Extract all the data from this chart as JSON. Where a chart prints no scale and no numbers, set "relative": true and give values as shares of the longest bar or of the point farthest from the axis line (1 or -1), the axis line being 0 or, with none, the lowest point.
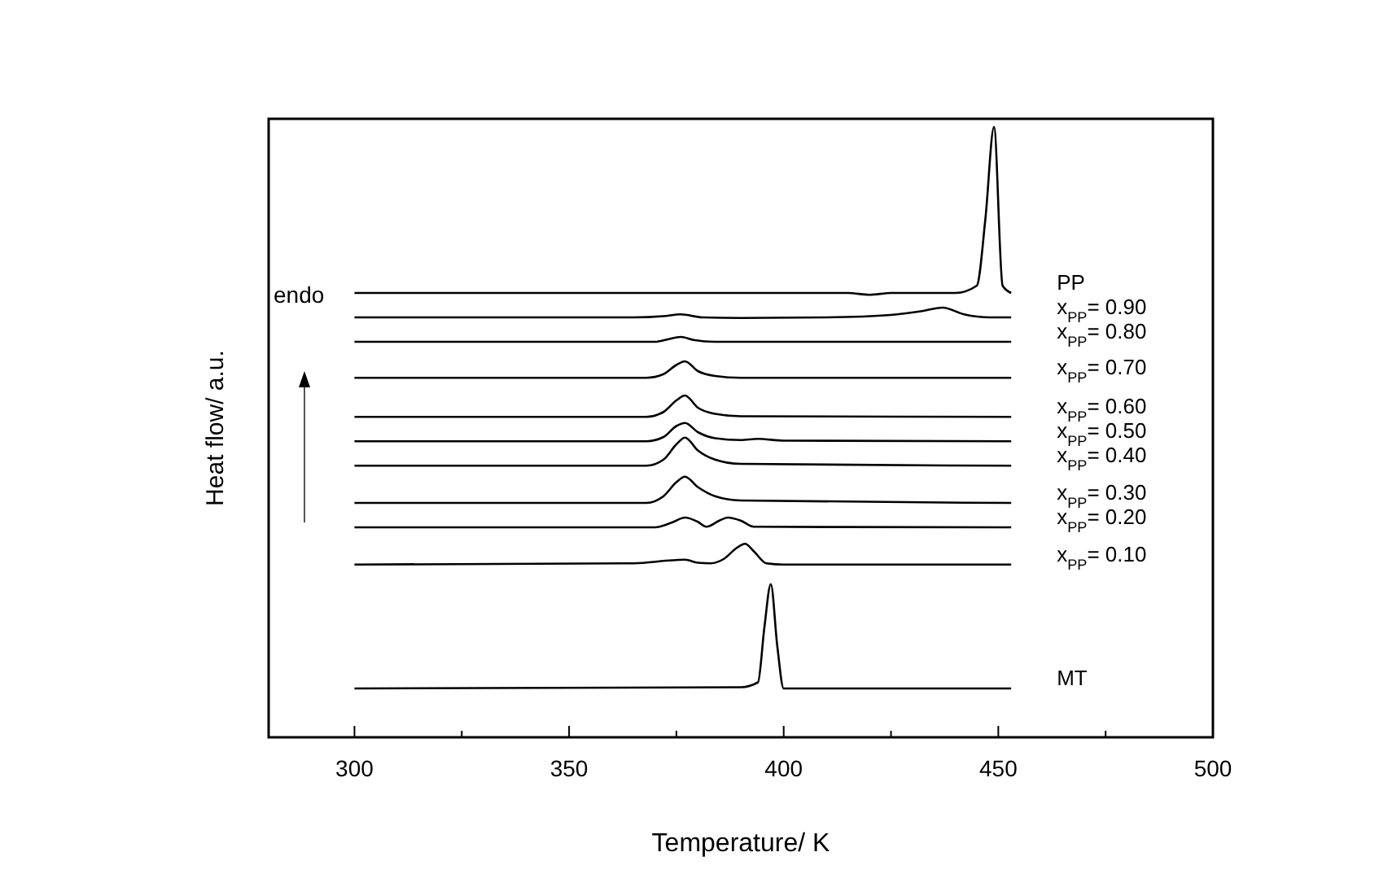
{
  "chart_data": {
    "type": "line",
    "relative": true,
    "xlabel": "Temperature/ K",
    "ylabel": "Heat flow/ a.u.",
    "annotations": [
      "endo"
    ],
    "legend": false,
    "grid": false,
    "marker": "none",
    "line_style": "solid",
    "tick_labels": "x",
    "xlim": [
      280,
      500
    ],
    "xticks": [
      300,
      {
        "value": 325,
        "label": null
      },
      350,
      {
        "value": 375,
        "label": null
      },
      400,
      {
        "value": 425,
        "label": null
      },
      450,
      {
        "value": 475,
        "label": null
      },
      500
    ],
    "series": [
      {
        "name": "PP",
        "color": "#000000",
        "x": [
          300,
          400,
          415,
          420,
          425,
          440,
          445,
          447,
          449,
          451,
          453
        ],
        "values": [
          0.728,
          0.728,
          0.728,
          0.725,
          0.728,
          0.728,
          0.74,
          0.85,
          1.0,
          0.74,
          0.728
        ]
      },
      {
        "name": "x$_{PP}$= 0.90",
        "color": "#000000",
        "x": [
          300,
          365,
          372,
          376,
          381,
          390,
          410,
          425,
          432,
          437,
          442,
          448,
          453
        ],
        "values": [
          0.688,
          0.688,
          0.69,
          0.693,
          0.688,
          0.687,
          0.688,
          0.692,
          0.698,
          0.704,
          0.693,
          0.688,
          0.688
        ]
      },
      {
        "name": "x$_{PP}$= 0.80",
        "color": "#000000",
        "x": [
          300,
          370,
          373,
          376,
          379,
          384,
          453
        ],
        "values": [
          0.648,
          0.648,
          0.652,
          0.656,
          0.651,
          0.648,
          0.648
        ]
      },
      {
        "name": "x$_{PP}$= 0.70",
        "color": "#000000",
        "x": [
          300,
          368,
          372,
          375,
          377,
          380,
          384,
          390,
          453
        ],
        "values": [
          0.589,
          0.589,
          0.595,
          0.61,
          0.616,
          0.6,
          0.592,
          0.589,
          0.589
        ]
      },
      {
        "name": "x$_{PP}$= 0.60",
        "color": "#000000",
        "x": [
          300,
          368,
          372,
          375,
          377,
          380,
          384,
          390,
          453
        ],
        "values": [
          0.525,
          0.525,
          0.533,
          0.552,
          0.56,
          0.54,
          0.53,
          0.526,
          0.525
        ]
      },
      {
        "name": "x$_{PP}$= 0.50",
        "color": "#000000",
        "x": [
          300,
          368,
          372,
          375,
          377,
          380,
          384,
          390,
          394,
          400,
          453
        ],
        "values": [
          0.485,
          0.485,
          0.492,
          0.51,
          0.515,
          0.5,
          0.49,
          0.487,
          0.489,
          0.486,
          0.485
        ]
      },
      {
        "name": "x$_{PP}$= 0.40",
        "color": "#000000",
        "x": [
          300,
          368,
          372,
          375,
          377,
          380,
          384,
          390,
          453
        ],
        "values": [
          0.445,
          0.445,
          0.455,
          0.48,
          0.491,
          0.47,
          0.455,
          0.448,
          0.445
        ]
      },
      {
        "name": "x$_{PP}$= 0.30",
        "color": "#000000",
        "x": [
          300,
          368,
          372,
          375,
          377,
          380,
          384,
          390,
          453
        ],
        "values": [
          0.384,
          0.384,
          0.395,
          0.418,
          0.427,
          0.41,
          0.395,
          0.388,
          0.384
        ]
      },
      {
        "name": "x$_{PP}$= 0.20",
        "color": "#000000",
        "x": [
          300,
          370,
          374,
          377,
          380,
          382,
          385,
          387,
          390,
          393,
          453
        ],
        "values": [
          0.344,
          0.344,
          0.352,
          0.36,
          0.353,
          0.345,
          0.355,
          0.36,
          0.355,
          0.345,
          0.344
        ]
      },
      {
        "name": "x$_{PP}$= 0.10",
        "color": "#000000",
        "x": [
          300,
          365,
          374,
          377,
          380,
          383,
          386,
          389,
          391,
          393,
          396,
          400,
          453
        ],
        "values": [
          0.283,
          0.285,
          0.29,
          0.291,
          0.286,
          0.285,
          0.292,
          0.31,
          0.317,
          0.305,
          0.285,
          0.283,
          0.283
        ]
      },
      {
        "name": "MT",
        "color": "#000000",
        "x": [
          300,
          390,
          394,
          395.5,
          397,
          398.5,
          400,
          453
        ],
        "values": [
          0.08,
          0.082,
          0.09,
          0.18,
          0.251,
          0.15,
          0.08,
          0.08
        ]
      }
    ]
  }
}
